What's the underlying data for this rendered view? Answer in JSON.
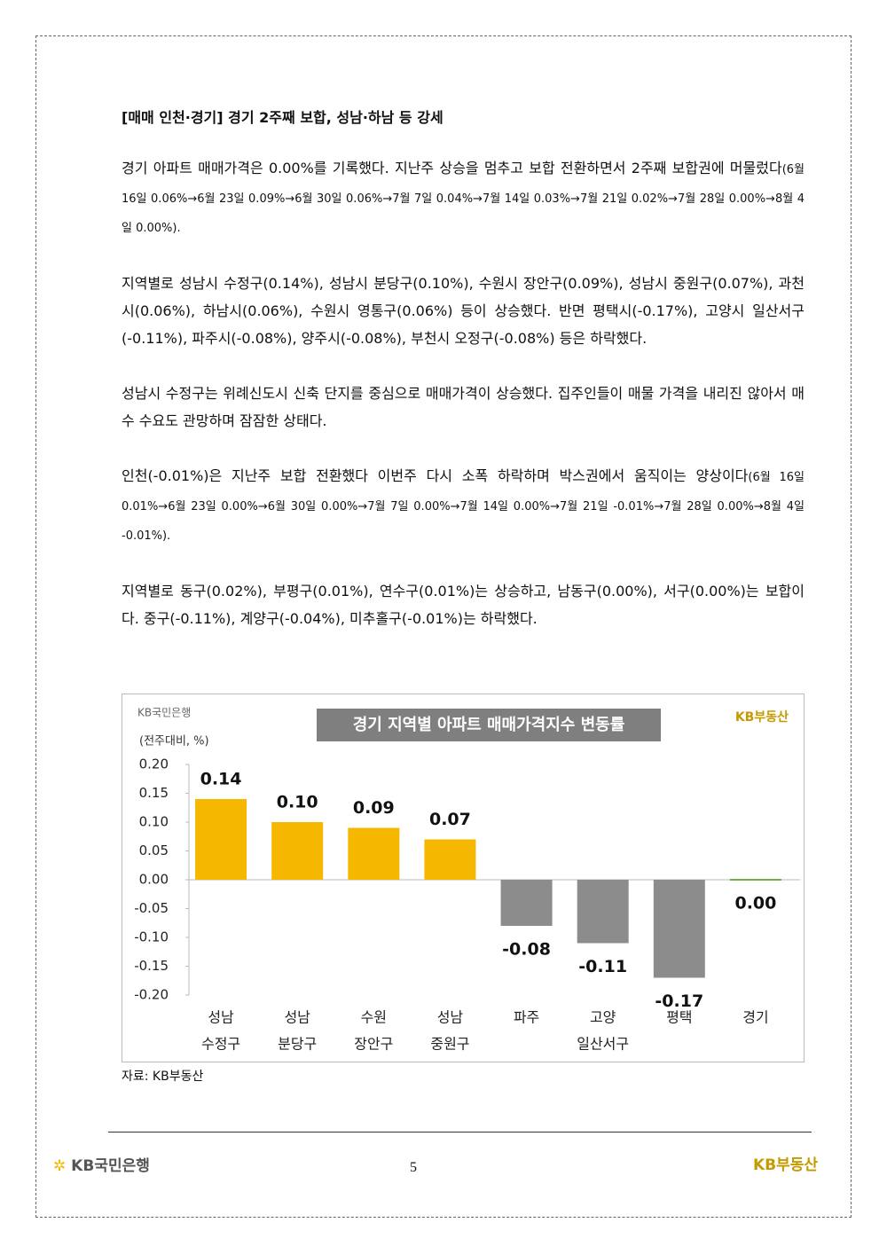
{
  "heading": "[매매 인천·경기] 경기 2주째 보합, 성남·하남 등 강세",
  "paragraphs": [
    {
      "text": "경기 아파트 매매가격은 0.00%를 기록했다. 지난주 상승을 멈추고 보합 전환하면서 2주째 보합권에 머물렀다",
      "note": "(6월 16일 0.06%→6월 23일 0.09%→6월 30일 0.06%→7월 7일 0.04%→7월 14일 0.03%→7월 21일 0.02%→7월 28일 0.00%→8월 4일 0.00%)."
    },
    {
      "text": "지역별로 성남시 수정구(0.14%), 성남시 분당구(0.10%), 수원시 장안구(0.09%), 성남시 중원구(0.07%), 과천시(0.06%), 하남시(0.06%), 수원시 영통구(0.06%) 등이 상승했다. 반면 평택시(-0.17%), 고양시 일산서구(-0.11%), 파주시(-0.08%), 양주시(-0.08%), 부천시 오정구(-0.08%) 등은 하락했다."
    },
    {
      "text": "성남시 수정구는 위례신도시 신축 단지를 중심으로 매매가격이 상승했다. 집주인들이 매물 가격을 내리진 않아서 매수 수요도 관망하며 잠잠한 상태다."
    },
    {
      "text": "인천(-0.01%)은 지난주 보합 전환했다 이번주 다시 소폭 하락하며 박스권에서 움직이는 양상이다",
      "note": "(6월 16일 0.01%→6월 23일 0.00%→6월 30일 0.00%→7월 7일 0.00%→7월 14일 0.00%→7월 21일 -0.01%→7월 28일 0.00%→8월 4일 -0.01%)."
    },
    {
      "text": "지역별로 동구(0.02%), 부평구(0.01%), 연수구(0.01%)는 상승하고, 남동구(0.00%), 서구(0.00%)는 보합이다. 중구(-0.11%), 계양구(-0.04%), 미추홀구(-0.01%)는 하락했다."
    }
  ],
  "chart_data": {
    "type": "bar",
    "title": "경기 지역별 아파트 매매가격지수 변동률",
    "y_label": "(전주대비, %)",
    "logo_left": "KB국민은행",
    "logo_right": "KB부동산",
    "categories": [
      [
        "성남",
        "수정구"
      ],
      [
        "성남",
        "분당구"
      ],
      [
        "수원",
        "장안구"
      ],
      [
        "성남",
        "중원구"
      ],
      [
        "파주"
      ],
      [
        "고양",
        "일산서구"
      ],
      [
        "평택"
      ],
      [
        "경기"
      ]
    ],
    "values": [
      0.14,
      0.1,
      0.09,
      0.07,
      -0.08,
      -0.11,
      -0.17,
      0.0
    ],
    "value_labels": [
      "0.14",
      "0.10",
      "0.09",
      "0.07",
      "-0.08",
      "-0.11",
      "-0.17",
      "0.00"
    ],
    "colors": [
      "#f5b700",
      "#f5b700",
      "#f5b700",
      "#f5b700",
      "#8c8c8c",
      "#8c8c8c",
      "#8c8c8c",
      "#70ad47"
    ],
    "ylim": [
      -0.2,
      0.2
    ],
    "yticks": [
      {
        "value": 0.2,
        "label": "0.20"
      },
      {
        "value": 0.15,
        "label": "0.15"
      },
      {
        "value": 0.1,
        "label": "0.10"
      },
      {
        "value": 0.05,
        "label": "0.05"
      },
      {
        "value": 0,
        "label": "0.00"
      },
      {
        "value": -0.05,
        "label": "-0.05"
      },
      {
        "value": -0.1,
        "label": "-0.10"
      },
      {
        "value": -0.15,
        "label": "-0.15"
      },
      {
        "value": -0.2,
        "label": "-0.20"
      }
    ],
    "grid": false
  },
  "source": "자료: KB부동산",
  "footer": {
    "bank": "KB국민은행",
    "page": "5",
    "brand": "KB부동산"
  }
}
